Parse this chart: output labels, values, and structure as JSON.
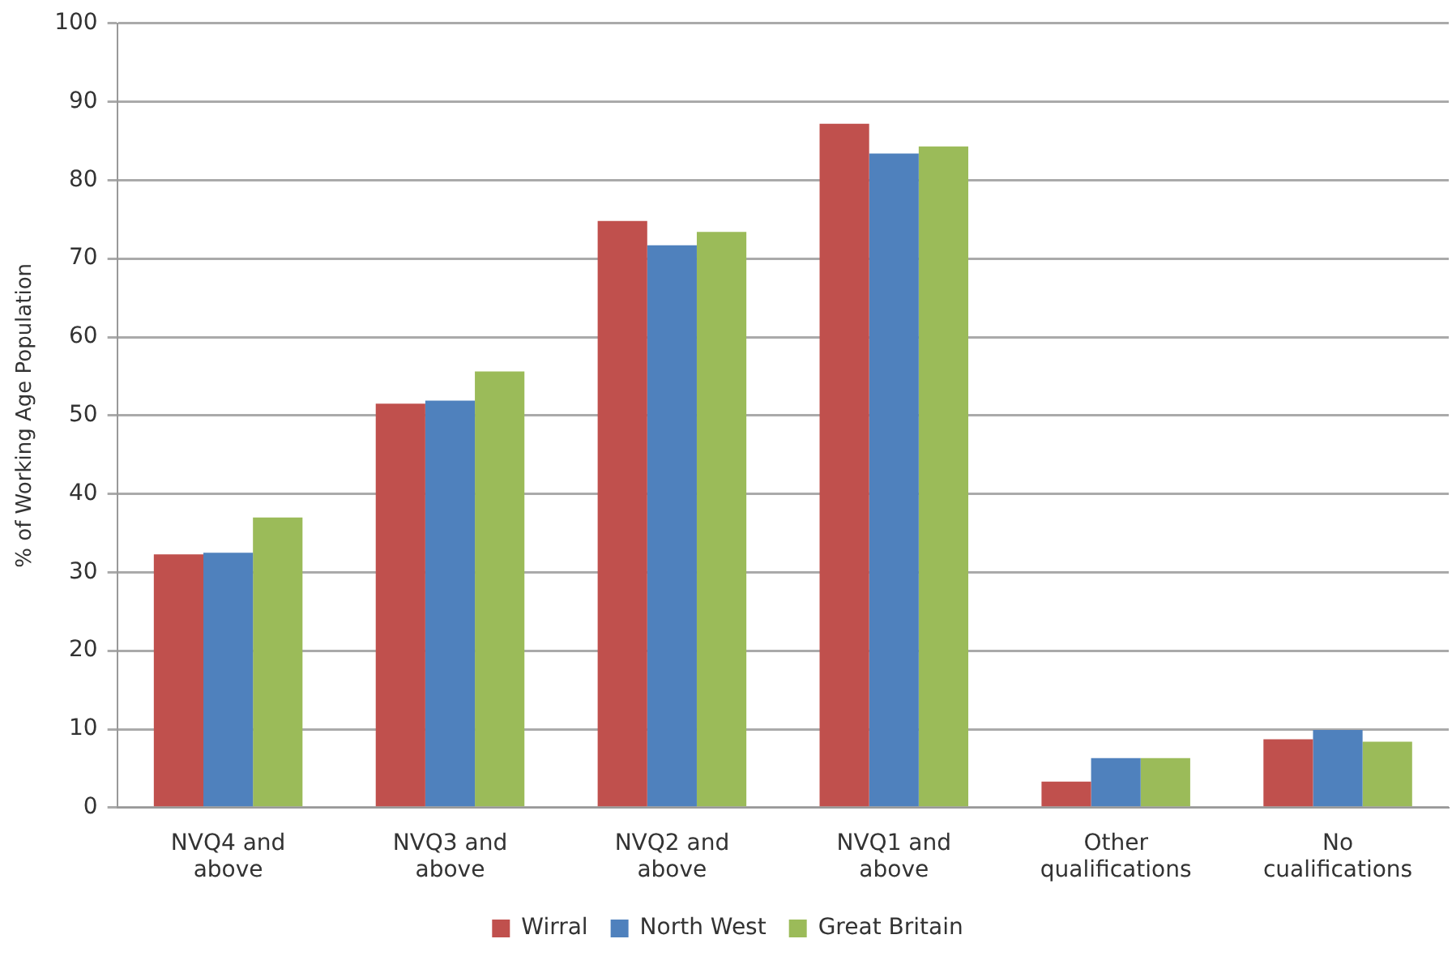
{
  "chart_data": {
    "type": "bar",
    "ylabel": "% of Working Age Population",
    "categories": [
      "NVQ4 and above",
      "NVQ3 and above",
      "NVQ2 and above",
      "NVQ1 and above",
      "Other qualifications",
      "No cualifications"
    ],
    "series": [
      {
        "name": "Wirral",
        "color": "#c0504d",
        "values": [
          32.3,
          51.5,
          74.8,
          87.2,
          3.3,
          8.7
        ]
      },
      {
        "name": "North West",
        "color": "#4f81bd",
        "values": [
          32.5,
          51.9,
          71.7,
          83.4,
          6.3,
          9.9
        ]
      },
      {
        "name": "Great Britain",
        "color": "#9bbb59",
        "values": [
          37.0,
          55.6,
          73.4,
          84.3,
          6.3,
          8.4
        ]
      }
    ],
    "ylim": [
      0,
      100
    ],
    "yticks": [
      0,
      10,
      20,
      30,
      40,
      50,
      60,
      70,
      80,
      90,
      100
    ],
    "grid": "y",
    "legend": "bottom"
  }
}
